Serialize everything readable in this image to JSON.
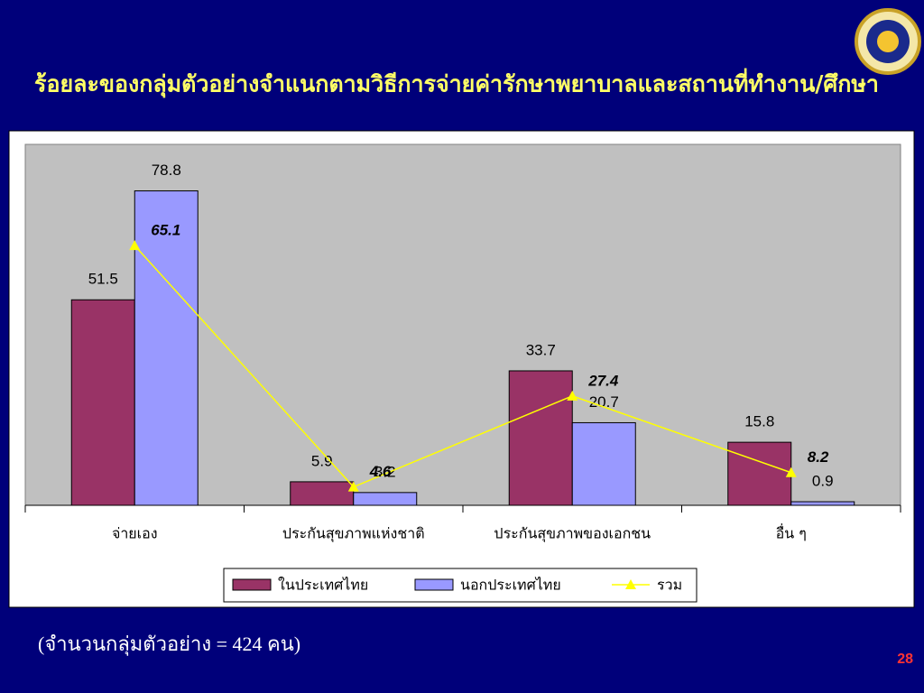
{
  "chart_data": {
    "type": "bar",
    "title": "ร้อยละของกลุ่มตัวอย่างจำแนกตามวิธีการจ่ายค่ารักษาพยาบาลและสถานที่ทำงาน/ศึกษา",
    "categories": [
      "จ่ายเอง",
      "ประกันสุขภาพแห่งชาติ",
      "ประกันสุขภาพของเอกชน",
      "อื่น ๆ"
    ],
    "series": [
      {
        "name": "ในประเทศไทย",
        "color": "#993366",
        "values": [
          51.5,
          5.9,
          33.7,
          15.8
        ]
      },
      {
        "name": "นอกประเทศไทย",
        "color": "#9999ff",
        "values": [
          78.8,
          3.2,
          20.7,
          0.9
        ]
      },
      {
        "name": "รวม",
        "type": "line",
        "color": "#ffff00",
        "values": [
          65.1,
          4.6,
          27.4,
          8.2
        ]
      }
    ],
    "ylim": [
      0,
      90
    ],
    "legend": "bottom"
  },
  "note": "(จำนวนกลุ่มตัวอย่าง = 424 คน)",
  "page_number": 28
}
